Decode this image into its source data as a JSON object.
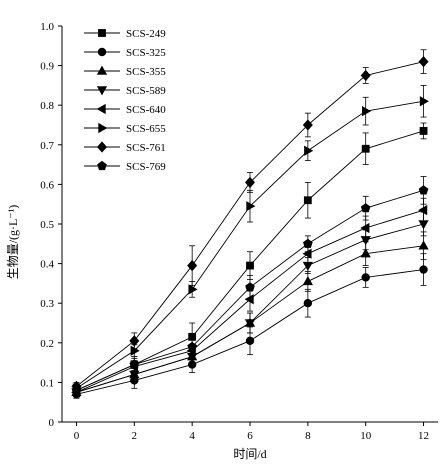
{
  "chart_data": {
    "type": "line",
    "xlabel": "时间/d",
    "ylabel": "生物量/(g·L⁻¹)",
    "x": [
      0,
      2,
      4,
      6,
      8,
      10,
      12
    ],
    "xlim": [
      -0.5,
      12.5
    ],
    "ylim": [
      0,
      1.0
    ],
    "xticks": [
      0,
      2,
      4,
      6,
      8,
      10,
      12
    ],
    "xtick_labels": [
      "0",
      "2",
      "4",
      "6",
      "8",
      "10",
      "12"
    ],
    "yticks": [
      0,
      0.1,
      0.2,
      0.3,
      0.4,
      0.5,
      0.6,
      0.7,
      0.8,
      0.9,
      1.0
    ],
    "ytick_labels": [
      "0",
      "0.1",
      "0.2",
      "0.3",
      "0.4",
      "0.5",
      "0.6",
      "0.7",
      "0.8",
      "0.9",
      "1.0"
    ],
    "grid": false,
    "legend": "top-left",
    "error_bars": true,
    "colors": {
      "ink": "#000000",
      "background": "#ffffff"
    },
    "series": [
      {
        "name": "SCS-249",
        "marker": "square",
        "values": [
          0.08,
          0.145,
          0.215,
          0.395,
          0.56,
          0.69,
          0.735
        ],
        "error": [
          0.01,
          0.02,
          0.035,
          0.035,
          0.045,
          0.04,
          0.02
        ]
      },
      {
        "name": "SCS-325",
        "marker": "circle",
        "values": [
          0.07,
          0.105,
          0.145,
          0.205,
          0.3,
          0.365,
          0.385
        ],
        "error": [
          0.01,
          0.02,
          0.02,
          0.035,
          0.035,
          0.025,
          0.04
        ]
      },
      {
        "name": "SCS-355",
        "marker": "triangle-up",
        "values": [
          0.075,
          0.12,
          0.165,
          0.25,
          0.355,
          0.425,
          0.445
        ],
        "error": [
          0.01,
          0.015,
          0.02,
          0.025,
          0.025,
          0.03,
          0.035
        ]
      },
      {
        "name": "SCS-589",
        "marker": "triangle-down",
        "values": [
          0.075,
          0.12,
          0.165,
          0.25,
          0.395,
          0.46,
          0.5
        ],
        "error": [
          0.01,
          0.015,
          0.02,
          0.025,
          0.02,
          0.025,
          0.03
        ]
      },
      {
        "name": "SCS-640",
        "marker": "triangle-left",
        "values": [
          0.075,
          0.14,
          0.18,
          0.31,
          0.425,
          0.49,
          0.535
        ],
        "error": [
          0.01,
          0.015,
          0.015,
          0.03,
          0.025,
          0.03,
          0.03
        ]
      },
      {
        "name": "SCS-655",
        "marker": "triangle-right",
        "values": [
          0.085,
          0.18,
          0.335,
          0.545,
          0.685,
          0.785,
          0.81
        ],
        "error": [
          0.01,
          0.015,
          0.02,
          0.04,
          0.025,
          0.035,
          0.04
        ]
      },
      {
        "name": "SCS-761",
        "marker": "diamond",
        "values": [
          0.09,
          0.205,
          0.395,
          0.605,
          0.75,
          0.875,
          0.91
        ],
        "error": [
          0.01,
          0.02,
          0.05,
          0.025,
          0.03,
          0.02,
          0.03
        ]
      },
      {
        "name": "SCS-769",
        "marker": "pentagon",
        "values": [
          0.08,
          0.145,
          0.19,
          0.34,
          0.45,
          0.54,
          0.585
        ],
        "error": [
          0.01,
          0.015,
          0.02,
          0.03,
          0.02,
          0.03,
          0.035
        ]
      }
    ]
  }
}
